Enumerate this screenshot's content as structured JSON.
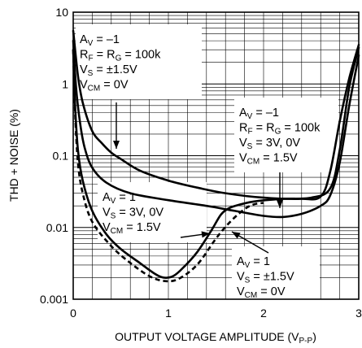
{
  "chart_data": {
    "type": "line",
    "title": "",
    "xlabel": "OUTPUT VOLTAGE AMPLITUDE (V",
    "xlabel_sub": "P-P",
    "xlabel_close": ")",
    "ylabel": "THD + NOISE (%)",
    "x_ticks": [
      "0",
      "1",
      "2",
      "3"
    ],
    "y_ticks": [
      "0.001",
      "0.01",
      "0.1",
      "1",
      "10"
    ],
    "xlim": [
      0,
      3
    ],
    "ylim": [
      0.001,
      10
    ],
    "y_scale": "log",
    "grid": true,
    "series": [
      {
        "style": "solid",
        "points": [
          [
            0,
            5.5
          ],
          [
            0.05,
            1.3
          ],
          [
            0.1,
            0.55
          ],
          [
            0.2,
            0.22
          ],
          [
            0.3,
            0.15
          ],
          [
            0.4,
            0.11
          ],
          [
            0.5,
            0.09
          ],
          [
            0.7,
            0.062
          ],
          [
            1.0,
            0.045
          ],
          [
            1.3,
            0.036
          ],
          [
            1.6,
            0.03
          ],
          [
            2.0,
            0.026
          ],
          [
            2.4,
            0.025
          ],
          [
            2.6,
            0.027
          ],
          [
            2.7,
            0.06
          ],
          [
            2.8,
            0.3
          ],
          [
            2.9,
            1.2
          ],
          [
            3.0,
            3.5
          ]
        ]
      },
      {
        "style": "solid",
        "points": [
          [
            0,
            4.0
          ],
          [
            0.03,
            0.9
          ],
          [
            0.07,
            0.3
          ],
          [
            0.12,
            0.13
          ],
          [
            0.2,
            0.068
          ],
          [
            0.35,
            0.042
          ],
          [
            0.6,
            0.03
          ],
          [
            1.0,
            0.024
          ],
          [
            1.4,
            0.02
          ],
          [
            1.7,
            0.017
          ],
          [
            2.0,
            0.0145
          ],
          [
            2.2,
            0.014
          ],
          [
            2.4,
            0.0155
          ],
          [
            2.6,
            0.02
          ],
          [
            2.7,
            0.028
          ],
          [
            2.8,
            0.08
          ],
          [
            2.9,
            0.5
          ],
          [
            3.0,
            2.5
          ]
        ]
      },
      {
        "style": "solid",
        "points": [
          [
            0,
            3.0
          ],
          [
            0.02,
            0.5
          ],
          [
            0.05,
            0.12
          ],
          [
            0.1,
            0.045
          ],
          [
            0.2,
            0.017
          ],
          [
            0.35,
            0.008
          ],
          [
            0.5,
            0.005
          ],
          [
            0.7,
            0.0032
          ],
          [
            0.85,
            0.0023
          ],
          [
            0.95,
            0.002
          ],
          [
            1.05,
            0.0021
          ],
          [
            1.15,
            0.0027
          ],
          [
            1.3,
            0.0045
          ],
          [
            1.45,
            0.009
          ],
          [
            1.55,
            0.015
          ],
          [
            1.62,
            0.018
          ],
          [
            1.7,
            0.02
          ],
          [
            1.9,
            0.023
          ],
          [
            2.2,
            0.025
          ],
          [
            2.5,
            0.026
          ],
          [
            2.7,
            0.035
          ],
          [
            2.8,
            0.12
          ],
          [
            2.9,
            0.9
          ],
          [
            3.0,
            3.2
          ]
        ]
      },
      {
        "style": "dashed",
        "points": [
          [
            0,
            3.0
          ],
          [
            0.02,
            0.4
          ],
          [
            0.05,
            0.08
          ],
          [
            0.1,
            0.03
          ],
          [
            0.2,
            0.012
          ],
          [
            0.4,
            0.0055
          ],
          [
            0.6,
            0.0032
          ],
          [
            0.8,
            0.0021
          ],
          [
            0.95,
            0.0018
          ],
          [
            1.1,
            0.0019
          ],
          [
            1.3,
            0.003
          ],
          [
            1.5,
            0.007
          ],
          [
            1.65,
            0.012
          ],
          [
            1.8,
            0.018
          ],
          [
            1.9,
            0.021
          ],
          [
            2.0,
            0.022
          ]
        ]
      }
    ],
    "annotations": [
      {
        "lines": [
          [
            "A",
            "V",
            " = –1"
          ],
          [
            "R",
            "F",
            " = R",
            "G",
            " = 100k"
          ],
          [
            "V",
            "S",
            " = ±1.5V"
          ],
          [
            "V",
            "CM",
            " = 0V"
          ]
        ]
      },
      {
        "lines": [
          [
            "A",
            "V",
            " = –1"
          ],
          [
            "R",
            "F",
            " = R",
            "G",
            " = 100k"
          ],
          [
            "V",
            "S",
            " = 3V, 0V"
          ],
          [
            "V",
            "CM",
            " = 1.5V"
          ]
        ]
      },
      {
        "lines": [
          [
            "A",
            "V",
            " = 1"
          ],
          [
            "V",
            "S",
            " = 3V, 0V"
          ],
          [
            "V",
            "CM",
            " = 1.5V"
          ]
        ]
      },
      {
        "lines": [
          [
            "A",
            "V",
            " = 1"
          ],
          [
            "V",
            "S",
            " = ±1.5V"
          ],
          [
            "V",
            "CM",
            " = 0V"
          ]
        ]
      }
    ]
  }
}
